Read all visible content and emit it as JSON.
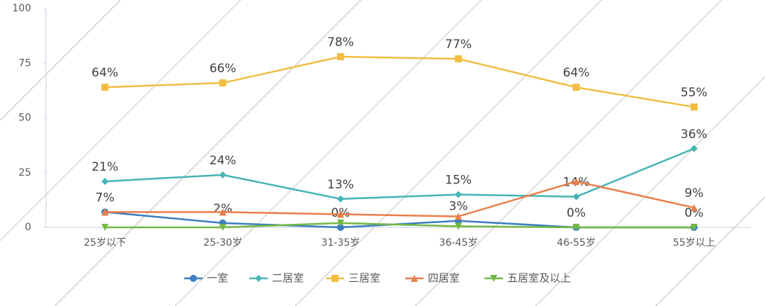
{
  "chart_data": {
    "type": "line",
    "categories": [
      "25岁以下",
      "25-30岁",
      "31-35岁",
      "36-45岁",
      "46-55岁",
      "55岁以上"
    ],
    "series": [
      {
        "name": "一室",
        "color": "#3a7ebf",
        "values": [
          7,
          2,
          0,
          3,
          0,
          0
        ],
        "value_labels": [
          "7%",
          "2%",
          "0%",
          "3%",
          "0%",
          "0%"
        ]
      },
      {
        "name": "二居室",
        "color": "#45b5b5",
        "values": [
          21,
          24,
          13,
          15,
          14,
          36
        ],
        "value_labels": [
          "21%",
          "24%",
          "13%",
          "15%",
          "14%",
          "36%"
        ]
      },
      {
        "name": "三居室",
        "color": "#f2bd42",
        "values": [
          64,
          66,
          78,
          77,
          64,
          55
        ],
        "value_labels": [
          "64%",
          "66%",
          "78%",
          "77%",
          "64%",
          "55%"
        ]
      },
      {
        "name": "四居室",
        "color": "#ea7d4a",
        "values": [
          7,
          7,
          6,
          5,
          21,
          9
        ],
        "value_labels": [
          null,
          null,
          null,
          null,
          null,
          "9%"
        ]
      },
      {
        "name": "五居室及以上",
        "color": "#72b844",
        "values": [
          0,
          0,
          2,
          0.5,
          0,
          0
        ]
      }
    ],
    "ylim": [
      0,
      100
    ],
    "yticks": [
      0,
      25,
      50,
      75,
      100
    ],
    "grid": false
  }
}
